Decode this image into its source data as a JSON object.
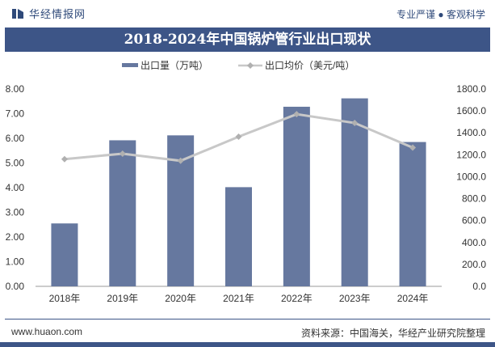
{
  "header": {
    "brand": "华经情报网",
    "slogan": "专业严谨 ● 客观科学"
  },
  "footer": {
    "url": "www.huaon.com",
    "source": "资料来源：中国海关，华经产业研究院整理"
  },
  "colors": {
    "bar": "#66789f",
    "line": "#c8c8c8",
    "title_bg": "#3d5587",
    "brand": "#2f4a7a"
  },
  "chart_data": {
    "type": "bar",
    "title": "2018-2024年中国锅炉管行业出口现状",
    "categories": [
      "2018年",
      "2019年",
      "2020年",
      "2021年",
      "2022年",
      "2023年",
      "2024年"
    ],
    "series": [
      {
        "name": "出口量（万吨）",
        "type": "bar",
        "axis": "left",
        "values": [
          2.55,
          5.92,
          6.12,
          4.02,
          7.28,
          7.62,
          5.85
        ]
      },
      {
        "name": "出口均价（美元/吨）",
        "type": "line",
        "axis": "right",
        "values": [
          1160,
          1210,
          1145,
          1365,
          1570,
          1490,
          1265
        ]
      }
    ],
    "y_left": {
      "ylim": [
        0,
        8
      ],
      "ticks": [
        "0.00",
        "1.00",
        "2.00",
        "3.00",
        "4.00",
        "5.00",
        "6.00",
        "7.00",
        "8.00"
      ]
    },
    "y_right": {
      "ylim": [
        0,
        1800
      ],
      "ticks": [
        "0.0",
        "200.0",
        "400.0",
        "600.0",
        "800.0",
        "1000.0",
        "1200.0",
        "1400.0",
        "1600.0",
        "1800.0"
      ]
    },
    "grid": false,
    "legend_position": "top-center"
  }
}
